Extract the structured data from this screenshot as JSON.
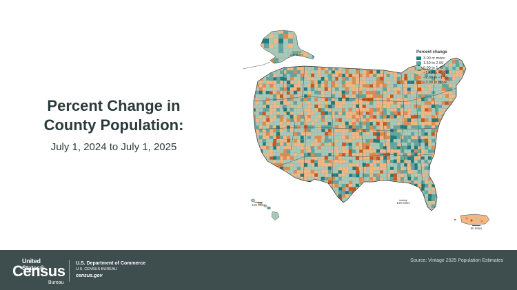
{
  "title_line1": "Percent Change in",
  "title_line2": "County Population:",
  "subtitle": "July 1, 2024 to July 1, 2025",
  "legend": {
    "title": "Percent change",
    "items": [
      {
        "label": "3.00 or more",
        "color": "#1f7b7b"
      },
      {
        "label": "1.50 to 2.99",
        "color": "#5fa69f"
      },
      {
        "label": "0.00 to 1.49",
        "color": "#a8c9b8"
      },
      {
        "label": "−1.49 to −0.01",
        "color": "#f1b883"
      },
      {
        "label": "−2.99 to −1.50",
        "color": "#e08a4e"
      },
      {
        "label": "−3.00 or more",
        "color": "#c9561d"
      }
    ]
  },
  "scales": {
    "alaska": "200 Miles",
    "hawaii": "100 Miles",
    "conus": "100 Miles",
    "puerto_rico": "50 Miles"
  },
  "footer": {
    "logo_top": "United States®",
    "logo_main": "Census",
    "logo_bureau": "Bureau",
    "dept_name": "U.S. Department of Commerce",
    "dept_sub": "U.S. CENSUS BUREAU",
    "dept_url": "census.gov",
    "source": "Source: Vintage 2025 Population Estimates"
  }
}
